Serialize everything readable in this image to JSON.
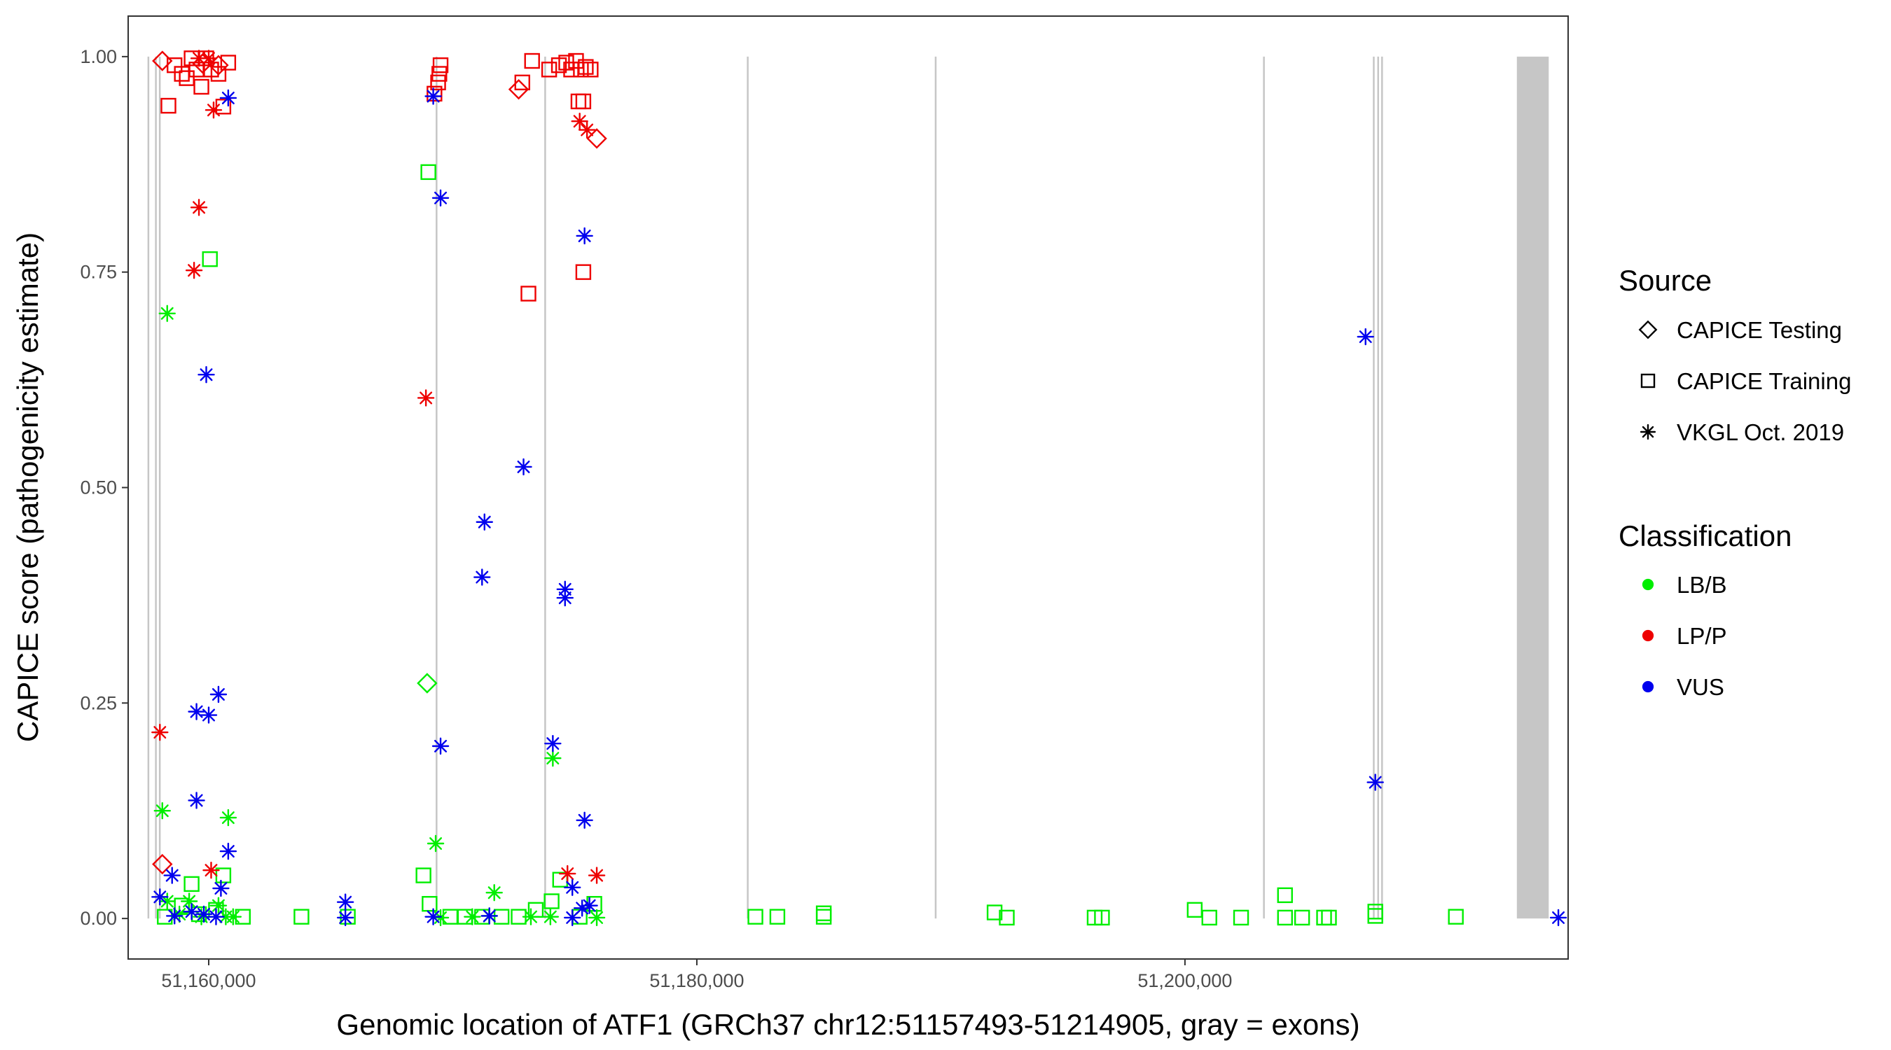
{
  "chart_data": {
    "type": "scatter",
    "title": "",
    "xlabel": "Genomic location of ATF1 (GRCh37 chr12:51157493-51214905, gray = exons)",
    "ylabel": "CAPICE score (pathogenicity estimate)",
    "xlim": [
      51156700,
      51215700
    ],
    "ylim": [
      -0.047,
      1.047
    ],
    "x_ticks": [
      51160000,
      51180000,
      51200000
    ],
    "x_tick_labels": [
      "51,160,000",
      "51,180,000",
      "51,200,000"
    ],
    "y_ticks": [
      0,
      0.25,
      0.5,
      0.75,
      1
    ],
    "y_tick_labels": [
      "0.00",
      "0.25",
      "0.50",
      "0.75",
      "1.00"
    ],
    "grid": false,
    "exons": [
      [
        51157493,
        51157560
      ],
      [
        51157800,
        51157840
      ],
      [
        51157960,
        51158000
      ],
      [
        51169300,
        51169350
      ],
      [
        51173750,
        51173800
      ],
      [
        51182050,
        51182100
      ],
      [
        51189750,
        51189800
      ],
      [
        51203200,
        51203250
      ],
      [
        51207700,
        51207750
      ],
      [
        51207880,
        51207920
      ],
      [
        51208040,
        51208080
      ],
      [
        51213600,
        51214905
      ]
    ],
    "legend": {
      "position": "right",
      "source_title": "Source",
      "source_items": [
        {
          "label": "CAPICE Testing",
          "shape": "diamond"
        },
        {
          "label": "CAPICE Training",
          "shape": "square"
        },
        {
          "label": "VKGL Oct. 2019",
          "shape": "asterisk"
        }
      ],
      "class_title": "Classification",
      "class_items": [
        {
          "label": "LB/B",
          "color": "#00ee00"
        },
        {
          "label": "LP/P",
          "color": "#ee0000"
        },
        {
          "label": "VUS",
          "color": "#0000ee"
        }
      ]
    },
    "series": [
      {
        "source": "CAPICE Testing",
        "shape": "diamond",
        "class": "LP/P",
        "color": "#ee0000",
        "points": [
          [
            51158100,
            0.995
          ],
          [
            51159750,
            0.992
          ],
          [
            51160400,
            0.99
          ],
          [
            51172700,
            0.962
          ],
          [
            51175900,
            0.905
          ],
          [
            51158100,
            0.063
          ]
        ]
      },
      {
        "source": "CAPICE Testing",
        "shape": "diamond",
        "class": "LB/B",
        "color": "#00ee00",
        "points": [
          [
            51168950,
            0.273
          ]
        ]
      },
      {
        "source": "CAPICE Training",
        "shape": "square",
        "class": "LP/P",
        "color": "#ee0000",
        "points": [
          [
            51158600,
            0.99
          ],
          [
            51158900,
            0.98
          ],
          [
            51159100,
            0.975
          ],
          [
            51159300,
            0.998
          ],
          [
            51159500,
            0.985
          ],
          [
            51159700,
            0.965
          ],
          [
            51159900,
            0.998
          ],
          [
            51160100,
            0.985
          ],
          [
            51160400,
            0.98
          ],
          [
            51160600,
            0.942
          ],
          [
            51160800,
            0.993
          ],
          [
            51158350,
            0.943
          ],
          [
            51169400,
            0.97
          ],
          [
            51169450,
            0.98
          ],
          [
            51169500,
            0.99
          ],
          [
            51169250,
            0.957
          ],
          [
            51172850,
            0.97
          ],
          [
            51173250,
            0.995
          ],
          [
            51173950,
            0.985
          ],
          [
            51174350,
            0.99
          ],
          [
            51174650,
            0.993
          ],
          [
            51174850,
            0.985
          ],
          [
            51175050,
            0.995
          ],
          [
            51175250,
            0.985
          ],
          [
            51175450,
            0.988
          ],
          [
            51175650,
            0.985
          ],
          [
            51175150,
            0.948
          ],
          [
            51175350,
            0.948
          ],
          [
            51173100,
            0.725
          ],
          [
            51175350,
            0.75
          ]
        ]
      },
      {
        "source": "CAPICE Training",
        "shape": "square",
        "class": "LB/B",
        "color": "#00ee00",
        "points": [
          [
            51160050,
            0.765
          ],
          [
            51169000,
            0.866
          ],
          [
            51159300,
            0.04
          ],
          [
            51160600,
            0.05
          ],
          [
            51158900,
            0.015
          ],
          [
            51159600,
            0.005
          ],
          [
            51160300,
            0.01
          ],
          [
            51158200,
            0.002
          ],
          [
            51161400,
            0.002
          ],
          [
            51163800,
            0.002
          ],
          [
            51165700,
            0.002
          ],
          [
            51168800,
            0.05
          ],
          [
            51169050,
            0.017
          ],
          [
            51169900,
            0.002
          ],
          [
            51170500,
            0.002
          ],
          [
            51171200,
            0.002
          ],
          [
            51172000,
            0.002
          ],
          [
            51172700,
            0.002
          ],
          [
            51173400,
            0.01
          ],
          [
            51174050,
            0.02
          ],
          [
            51174400,
            0.045
          ],
          [
            51175200,
            0.002
          ],
          [
            51175800,
            0.017
          ],
          [
            51182400,
            0.002
          ],
          [
            51183300,
            0.002
          ],
          [
            51185200,
            0.002
          ],
          [
            51185200,
            0.006
          ],
          [
            51192200,
            0.007
          ],
          [
            51192700,
            0.001
          ],
          [
            51196300,
            0.001
          ],
          [
            51196600,
            0.001
          ],
          [
            51200400,
            0.01
          ],
          [
            51201000,
            0.001
          ],
          [
            51202300,
            0.001
          ],
          [
            51204100,
            0.027
          ],
          [
            51204100,
            0.001
          ],
          [
            51204800,
            0.001
          ],
          [
            51205700,
            0.001
          ],
          [
            51205900,
            0.001
          ],
          [
            51207800,
            0.008
          ],
          [
            51207800,
            0.003
          ],
          [
            51211100,
            0.002
          ]
        ]
      },
      {
        "source": "VKGL Oct. 2019",
        "shape": "asterisk",
        "class": "LP/P",
        "color": "#ee0000",
        "points": [
          [
            51159600,
            0.998
          ],
          [
            51160000,
            0.998
          ],
          [
            51160200,
            0.938
          ],
          [
            51159600,
            0.825
          ],
          [
            51159400,
            0.752
          ],
          [
            51158000,
            0.216
          ],
          [
            51160100,
            0.056
          ],
          [
            51168900,
            0.604
          ],
          [
            51175200,
            0.925
          ],
          [
            51175500,
            0.915
          ],
          [
            51174700,
            0.052
          ],
          [
            51175900,
            0.05
          ]
        ]
      },
      {
        "source": "VKGL Oct. 2019",
        "shape": "asterisk",
        "class": "LB/B",
        "color": "#00ee00",
        "points": [
          [
            51158300,
            0.702
          ],
          [
            51158100,
            0.125
          ],
          [
            51160800,
            0.117
          ],
          [
            51169300,
            0.087
          ],
          [
            51171700,
            0.03
          ],
          [
            51174100,
            0.186
          ],
          [
            51158300,
            0.02
          ],
          [
            51158800,
            0.005
          ],
          [
            51159200,
            0.02
          ],
          [
            51159700,
            0.002
          ],
          [
            51160400,
            0.015
          ],
          [
            51160700,
            0.002
          ],
          [
            51161000,
            0.002
          ],
          [
            51169500,
            0.001
          ],
          [
            51170800,
            0.002
          ],
          [
            51171500,
            0.003
          ],
          [
            51173200,
            0.002
          ],
          [
            51174000,
            0.002
          ],
          [
            51175900,
            0.001
          ]
        ]
      },
      {
        "source": "VKGL Oct. 2019",
        "shape": "asterisk",
        "class": "VUS",
        "color": "#0000ee",
        "points": [
          [
            51160800,
            0.952
          ],
          [
            51159900,
            0.631
          ],
          [
            51159500,
            0.24
          ],
          [
            51160000,
            0.236
          ],
          [
            51160400,
            0.26
          ],
          [
            51159500,
            0.137
          ],
          [
            51160800,
            0.078
          ],
          [
            51158500,
            0.05
          ],
          [
            51160500,
            0.035
          ],
          [
            51158000,
            0.025
          ],
          [
            51158600,
            0.003
          ],
          [
            51159300,
            0.008
          ],
          [
            51159800,
            0.005
          ],
          [
            51160300,
            0.002
          ],
          [
            51165600,
            0.019
          ],
          [
            51165600,
            0.001
          ],
          [
            51169200,
            0.954
          ],
          [
            51169500,
            0.836
          ],
          [
            51169500,
            0.2
          ],
          [
            51171300,
            0.46
          ],
          [
            51171200,
            0.396
          ],
          [
            51172900,
            0.524
          ],
          [
            51174100,
            0.203
          ],
          [
            51174600,
            0.382
          ],
          [
            51174600,
            0.372
          ],
          [
            51175400,
            0.792
          ],
          [
            51175400,
            0.114
          ],
          [
            51174900,
            0.036
          ],
          [
            51174900,
            0.001
          ],
          [
            51175300,
            0.012
          ],
          [
            51175600,
            0.015
          ],
          [
            51169200,
            0.002
          ],
          [
            51171500,
            0.003
          ],
          [
            51207400,
            0.675
          ],
          [
            51207800,
            0.158
          ],
          [
            51215300,
            0.001
          ]
        ]
      }
    ]
  }
}
